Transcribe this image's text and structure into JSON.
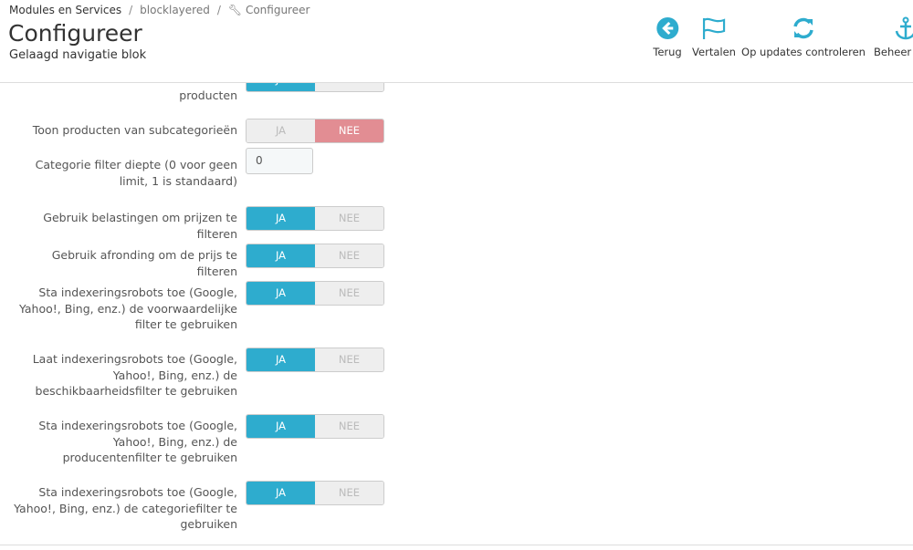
{
  "header": {
    "breadcrumb": [
      "Modules en Services",
      "blocklayered",
      "Configureer"
    ],
    "title": "Configureer",
    "subtitle": "Gelaagd navigatie blok",
    "toolbar": [
      "Terug",
      "Vertalen",
      "Op updates controleren",
      "Beheer hooks"
    ]
  },
  "switch": {
    "yes": "JA",
    "no": "NEE"
  },
  "form": {
    "rows": [
      {
        "label": "Toon het aantal overeenkomende producten",
        "type": "switch",
        "value": "yes"
      },
      {
        "label": "Toon producten van subcategorieën",
        "type": "switch",
        "value": "no"
      },
      {
        "label": "Categorie filter diepte (0 voor geen limit, 1 is standaard)",
        "type": "input",
        "value": "0"
      },
      {
        "label": "Gebruik belastingen om prijzen te filteren",
        "type": "switch",
        "value": "yes"
      },
      {
        "label": "Gebruik afronding om de prijs te filteren",
        "type": "switch",
        "value": "yes"
      },
      {
        "label": "Sta indexeringsrobots toe (Google, Yahoo!, Bing, enz.) de voorwaardelijke filter te gebruiken",
        "type": "switch",
        "value": "yes"
      },
      {
        "label": "Laat indexeringsrobots toe (Google, Yahoo!, Bing, enz.) de beschikbaarheidsfilter te gebruiken",
        "type": "switch",
        "value": "yes"
      },
      {
        "label": "Sta indexeringsrobots toe (Google, Yahoo!, Bing, enz.) de producentenfilter te gebruiken",
        "type": "switch",
        "value": "yes"
      },
      {
        "label": "Sta indexeringsrobots toe (Google, Yahoo!, Bing, enz.) de categoriefilter te gebruiken",
        "type": "switch",
        "value": "yes"
      }
    ]
  }
}
